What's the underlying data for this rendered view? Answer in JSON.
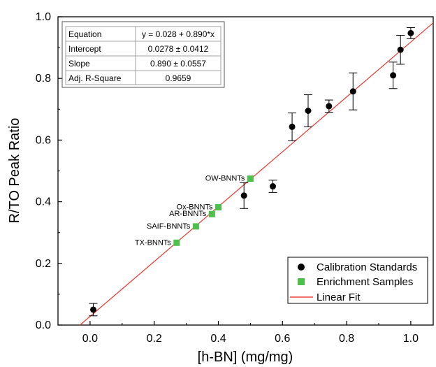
{
  "chart_data": {
    "type": "scatter",
    "xlabel": "[h-BN] (mg/mg)",
    "ylabel": "R/TO Peak Ratio",
    "xlim": [
      -0.1,
      1.07
    ],
    "ylim": [
      0,
      1.0
    ],
    "xticks": [
      "0.0",
      "0.2",
      "0.4",
      "0.6",
      "0.8",
      "1.0"
    ],
    "xtick_values": [
      0,
      0.2,
      0.4,
      0.6,
      0.8,
      1.0
    ],
    "yticks": [
      "0.0",
      "0.2",
      "0.4",
      "0.6",
      "0.8",
      "1.0"
    ],
    "ytick_values": [
      0,
      0.2,
      0.4,
      0.6,
      0.8,
      1.0
    ],
    "grid": false,
    "series": [
      {
        "name": "Calibration Standards",
        "color": "#000000",
        "marker": "circle",
        "points": [
          {
            "x": 0.01,
            "y": 0.05,
            "err": 0.02
          },
          {
            "x": 0.48,
            "y": 0.42,
            "err": 0.042
          },
          {
            "x": 0.57,
            "y": 0.45,
            "err": 0.02
          },
          {
            "x": 0.63,
            "y": 0.643,
            "err": 0.045
          },
          {
            "x": 0.68,
            "y": 0.695,
            "err": 0.052
          },
          {
            "x": 0.745,
            "y": 0.71,
            "err": 0.02
          },
          {
            "x": 0.82,
            "y": 0.758,
            "err": 0.06
          },
          {
            "x": 0.945,
            "y": 0.81,
            "err": 0.043
          },
          {
            "x": 0.968,
            "y": 0.893,
            "err": 0.047
          },
          {
            "x": 1.0,
            "y": 0.947,
            "err": 0.018
          }
        ]
      },
      {
        "name": "Enrichment Samples",
        "color": "#4dbf4a",
        "marker": "square",
        "points": [
          {
            "x": 0.5,
            "y": 0.475,
            "label": "OW-BNNTs"
          },
          {
            "x": 0.4,
            "y": 0.382,
            "label": "Ox-BNNTs"
          },
          {
            "x": 0.38,
            "y": 0.36,
            "label": "AR-BNNTs"
          },
          {
            "x": 0.33,
            "y": 0.32,
            "label": "SAIF-BNNTs"
          },
          {
            "x": 0.27,
            "y": 0.267,
            "label": "TX-BNNTs"
          }
        ]
      },
      {
        "name": "Linear Fit",
        "color": "#e8413a",
        "type": "line",
        "intercept": 0.028,
        "slope": 0.89
      }
    ],
    "legend": {
      "placement": "bottom-right"
    },
    "fit_table": [
      {
        "key": "Equation",
        "value": "y = 0.028 + 0.890*x"
      },
      {
        "key": "Intercept",
        "value": "0.0278 ± 0.0412"
      },
      {
        "key": "Slope",
        "value": "0.890 ± 0.0557"
      },
      {
        "key": "Adj. R-Square",
        "value": "0.9659"
      }
    ]
  }
}
